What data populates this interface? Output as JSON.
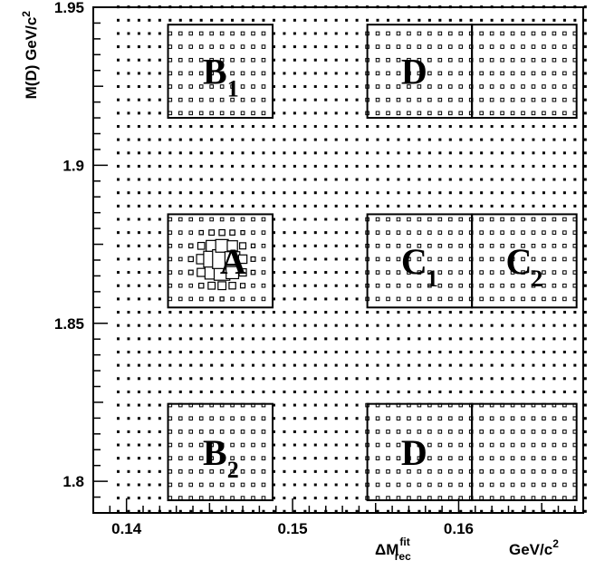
{
  "chart_data": {
    "type": "scatter",
    "title": "",
    "xlabel": "ΔM",
    "xlabel_sup": "fit",
    "xlabel_sub": "rec",
    "xunit": "GeV/c",
    "xunit_sup": "2",
    "ylabel": "M(D) GeV/c",
    "ylabel_sup": "2",
    "xlim": [
      0.138,
      0.1675
    ],
    "ylim": [
      1.79,
      1.95
    ],
    "xticks": [
      {
        "value": 0.14,
        "label": "0.14"
      },
      {
        "value": 0.15,
        "label": "0.15"
      },
      {
        "value": 0.16,
        "label": "0.16"
      }
    ],
    "yticks": [
      {
        "value": 1.8,
        "label": "1.8"
      },
      {
        "value": 1.85,
        "label": "1.85"
      },
      {
        "value": 1.9,
        "label": "1.9"
      },
      {
        "value": 1.95,
        "label": "1.95"
      }
    ],
    "grid": false,
    "background_grid": {
      "x_start": 0.1395,
      "x_end": 0.1675,
      "x_step": 0.000625,
      "y_start": 1.7905,
      "y_end": 1.9495,
      "y_step": 0.0042
    },
    "peak": {
      "x": 0.1457,
      "y": 1.8695,
      "sigma_x": 0.0009,
      "sigma_y": 0.005
    },
    "regions": [
      {
        "name": "B",
        "sub": "1",
        "x0": 0.1425,
        "x1": 0.1488,
        "y0": 1.915,
        "y1": 1.9445
      },
      {
        "name": "D",
        "sub": "",
        "x0": 0.1545,
        "x1": 0.1608,
        "y0": 1.915,
        "y1": 1.9445
      },
      {
        "name": "",
        "sub": "",
        "x0": 0.1608,
        "x1": 0.1671,
        "y0": 1.915,
        "y1": 1.9445
      },
      {
        "name": "A",
        "sub": "",
        "x0": 0.1425,
        "x1": 0.1488,
        "y0": 1.855,
        "y1": 1.8845
      },
      {
        "name": "C",
        "sub": "1",
        "x0": 0.1545,
        "x1": 0.1608,
        "y0": 1.855,
        "y1": 1.8845
      },
      {
        "name": "C",
        "sub": "2",
        "x0": 0.1608,
        "x1": 0.1671,
        "y0": 1.855,
        "y1": 1.8845
      },
      {
        "name": "B",
        "sub": "2",
        "x0": 0.1425,
        "x1": 0.1488,
        "y0": 1.794,
        "y1": 1.8245
      },
      {
        "name": "D",
        "sub": "",
        "x0": 0.1545,
        "x1": 0.1608,
        "y0": 1.794,
        "y1": 1.8245
      },
      {
        "name": "",
        "sub": "",
        "x0": 0.1608,
        "x1": 0.1671,
        "y0": 1.794,
        "y1": 1.8245
      }
    ]
  }
}
